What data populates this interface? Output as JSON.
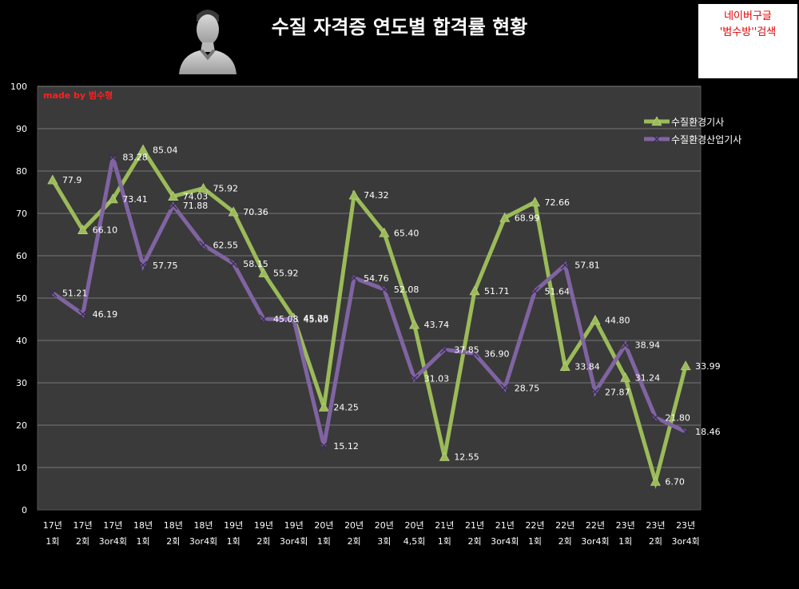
{
  "page": {
    "title": "수질 자격증 연도별 합격률 현황",
    "notice_line1": "네이버구글",
    "notice_line2": "'범수방''검색",
    "watermark": "made by  범수형",
    "colors": {
      "background": "#000000",
      "plot_background": "#3a3a3a",
      "notice_text": "#e00000",
      "watermark_text": "#ff2020"
    }
  },
  "chart_data": {
    "type": "line",
    "title": "수질 자격증 연도별 합격률 현황",
    "xlabel": "",
    "ylabel": "",
    "ylim": [
      0,
      100
    ],
    "yticks": [
      0,
      10,
      20,
      30,
      40,
      50,
      60,
      70,
      80,
      90,
      100
    ],
    "grid": true,
    "legend_position": "top-right",
    "categories": [
      {
        "year": "17년",
        "round": "1회"
      },
      {
        "year": "17년",
        "round": "2회"
      },
      {
        "year": "17년",
        "round": "3or4회"
      },
      {
        "year": "18년",
        "round": "1회"
      },
      {
        "year": "18년",
        "round": "2회"
      },
      {
        "year": "18년",
        "round": "3or4회"
      },
      {
        "year": "19년",
        "round": "1회"
      },
      {
        "year": "19년",
        "round": "2회"
      },
      {
        "year": "19년",
        "round": "3or4회"
      },
      {
        "year": "20년",
        "round": "1회"
      },
      {
        "year": "20년",
        "round": "2회"
      },
      {
        "year": "20년",
        "round": "3회"
      },
      {
        "year": "20년",
        "round": "4,5회"
      },
      {
        "year": "21년",
        "round": "1회"
      },
      {
        "year": "21년",
        "round": "2회"
      },
      {
        "year": "21년",
        "round": "3or4회"
      },
      {
        "year": "22년",
        "round": "1회"
      },
      {
        "year": "22년",
        "round": "2회"
      },
      {
        "year": "22년",
        "round": "3or4회"
      },
      {
        "year": "23년",
        "round": "1회"
      },
      {
        "year": "23년",
        "round": "2회"
      },
      {
        "year": "23년",
        "round": "3or4회"
      }
    ],
    "series": [
      {
        "name": "수질환경기사",
        "color": "#9bbb59",
        "marker": "triangle",
        "values": [
          77.9,
          66.1,
          73.41,
          85.04,
          74.03,
          75.92,
          70.36,
          55.92,
          45.28,
          24.25,
          74.32,
          65.4,
          43.74,
          12.55,
          51.71,
          68.99,
          72.66,
          33.84,
          44.8,
          31.24,
          6.7,
          33.99
        ],
        "labels": [
          "77.9",
          "66.10",
          "73.41",
          "85.04",
          "74.03",
          "75.92",
          "70.36",
          "55.92",
          "45.28",
          "24.25",
          "74.32",
          "65.40",
          "43.74",
          "12.55",
          "51.71",
          "68.99",
          "72.66",
          "33.84",
          "44.80",
          "31.24",
          "6.70",
          "33.99"
        ]
      },
      {
        "name": "수질환경산업기사",
        "color": "#8064a2",
        "marker": "x",
        "values": [
          51.21,
          46.19,
          83.28,
          57.75,
          71.88,
          62.55,
          58.15,
          45.08,
          45.0,
          15.12,
          54.76,
          52.08,
          31.03,
          37.85,
          36.9,
          28.75,
          51.64,
          57.81,
          27.87,
          38.94,
          21.8,
          18.46
        ],
        "labels": [
          "51.21",
          "46.19",
          "83.28",
          "57.75",
          "71.88",
          "62.55",
          "58.15",
          "45.08",
          "45.00",
          "15.12",
          "54.76",
          "52.08",
          "31.03",
          "37.85",
          "36.90",
          "28.75",
          "51.64",
          "57.81",
          "27.87",
          "38.94",
          "21.80",
          "18.46"
        ]
      }
    ]
  }
}
